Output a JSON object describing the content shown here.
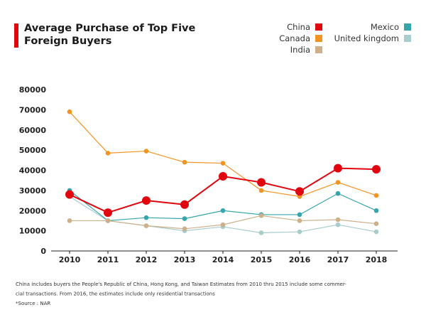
{
  "chart_data": {
    "type": "line",
    "title": [
      "Average Purchase of Top Five",
      "Foreign Buyers"
    ],
    "categories": [
      "2010",
      "2011",
      "2012",
      "2013",
      "2014",
      "2015",
      "2016",
      "2017",
      "2018"
    ],
    "series": [
      {
        "name": "China",
        "color": "#e1060e",
        "values": [
          28000,
          19000,
          25000,
          23000,
          37000,
          34000,
          29500,
          41000,
          40500
        ]
      },
      {
        "name": "Canada",
        "color": "#f39322",
        "values": [
          69000,
          48500,
          49500,
          44000,
          43500,
          30000,
          27000,
          34000,
          27500
        ]
      },
      {
        "name": "India",
        "color": "#cdb08a",
        "values": [
          15000,
          15000,
          12500,
          11000,
          13000,
          17500,
          15000,
          15500,
          13500
        ]
      },
      {
        "name": "Mexico",
        "color": "#35a5ac",
        "values": [
          30000,
          15000,
          16500,
          16000,
          20000,
          18000,
          18000,
          28500,
          20000
        ]
      },
      {
        "name": "United kingdom",
        "color": "#a9cccc",
        "values": [
          27000,
          15000,
          12500,
          10000,
          12000,
          9000,
          9500,
          13000,
          9500
        ]
      }
    ],
    "ylim": [
      0,
      80000
    ],
    "yticks": [
      0,
      10000,
      20000,
      30000,
      40000,
      50000,
      60000,
      70000,
      80000
    ],
    "grid": false,
    "notes": [
      "China includes buyers the People's Republic of China, Hong Kong, and Taiwan Estimates from 2010 thru 2015 include some commer-",
      "cial transactions. From 2016, the estimates include only residential transactions",
      "*Source : NAR"
    ]
  }
}
